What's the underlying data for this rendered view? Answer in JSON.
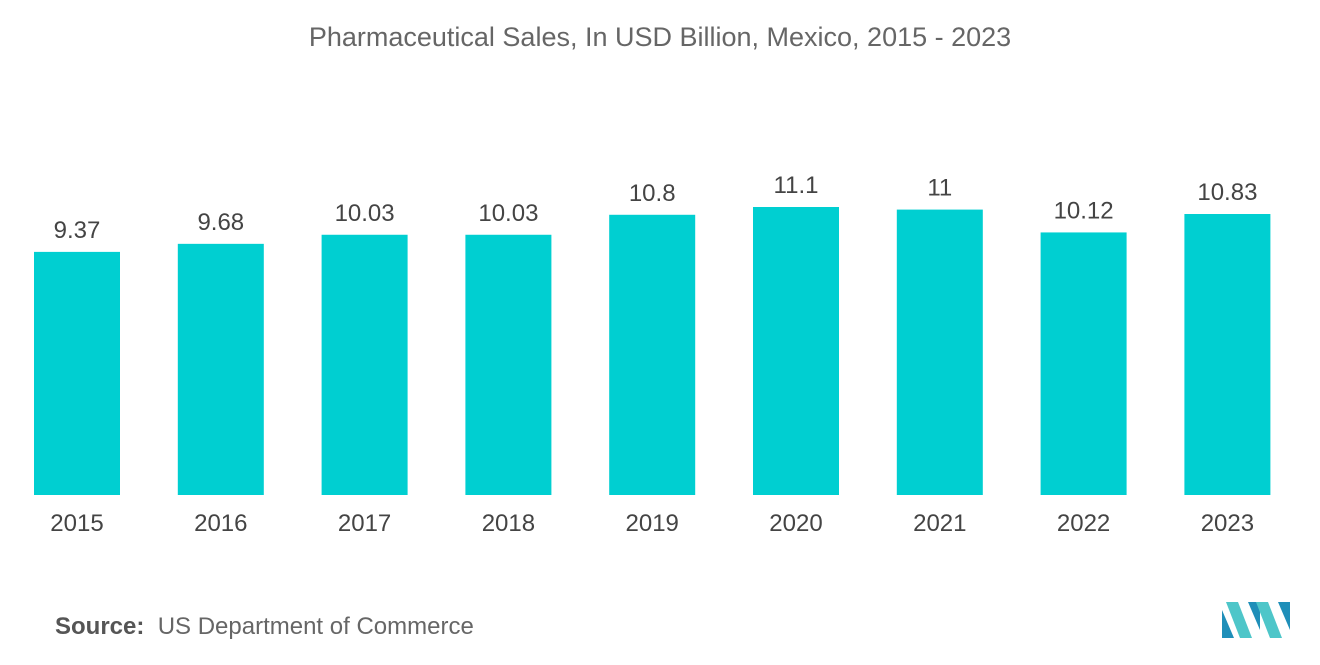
{
  "chart_data": {
    "type": "bar",
    "title": "Pharmaceutical Sales, In USD Billion, Mexico, 2015 - 2023",
    "categories": [
      "2015",
      "2016",
      "2017",
      "2018",
      "2019",
      "2020",
      "2021",
      "2022",
      "2023"
    ],
    "values": [
      9.37,
      9.68,
      10.03,
      10.03,
      10.8,
      11.1,
      11,
      10.12,
      10.83
    ],
    "value_labels": [
      "9.37",
      "9.68",
      "10.03",
      "10.03",
      "10.8",
      "11.1",
      "11",
      "10.12",
      "10.83"
    ],
    "xlabel": "",
    "ylabel": "",
    "ylim": [
      0,
      11.1
    ],
    "grid": false,
    "legend": "none",
    "bar_color": "#00cfd1"
  },
  "footer": {
    "source_label": "Source:",
    "source_text": "US Department of Commerce"
  },
  "logo": {
    "icon": "mordor-intelligence-logo-icon",
    "colors": [
      "#1f8fb9",
      "#4ec6c9"
    ]
  }
}
